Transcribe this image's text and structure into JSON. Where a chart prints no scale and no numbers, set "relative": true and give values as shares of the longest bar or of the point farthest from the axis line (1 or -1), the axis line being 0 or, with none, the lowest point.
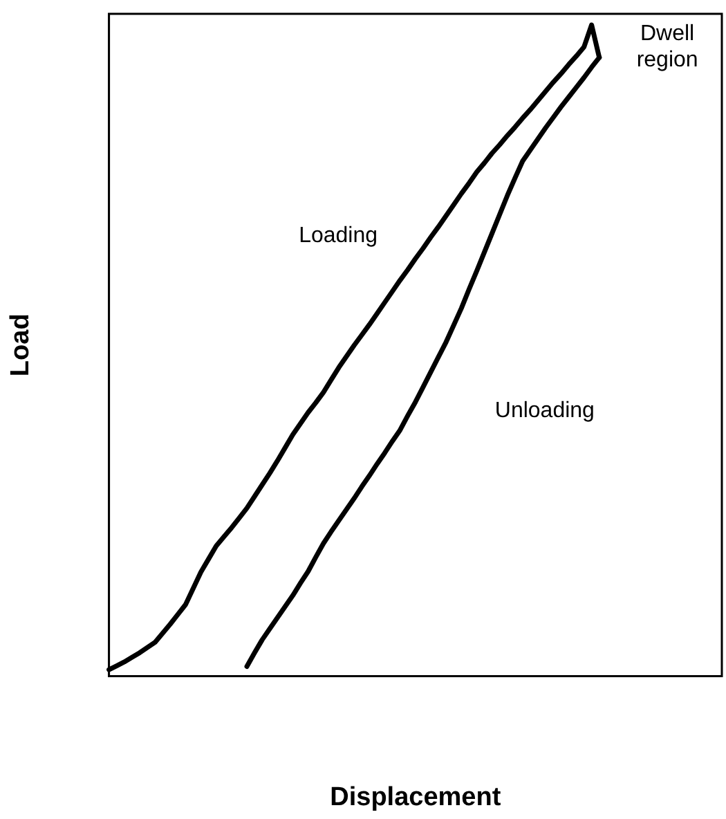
{
  "chart_data": {
    "type": "line",
    "relative": true,
    "xlabel": "Displacement",
    "ylabel": "Load",
    "grid": false,
    "legend": false,
    "marker": "none",
    "line_style": "solid",
    "categories": [
      null,
      null,
      null,
      null,
      null,
      null,
      null,
      null,
      null,
      null,
      null,
      null,
      null,
      null,
      null,
      null,
      null,
      null,
      null,
      null,
      null,
      null,
      null,
      null,
      null,
      null,
      null,
      null,
      null,
      null,
      null,
      null,
      null,
      null,
      null,
      null,
      null,
      null,
      null,
      null,
      null,
      null,
      null,
      null,
      null,
      null,
      null,
      null,
      null,
      null,
      null,
      null,
      null,
      null,
      null,
      null,
      null,
      null,
      null,
      null,
      null,
      null,
      null,
      null,
      null,
      null,
      null,
      null,
      null,
      null,
      null,
      null,
      null,
      null,
      null,
      null,
      null,
      null,
      null,
      null,
      null
    ],
    "series": [
      {
        "color": "#000000",
        "values": [
          0.01,
          0.016,
          0.022,
          0.029,
          0.036,
          0.044,
          0.052,
          0.066,
          0.08,
          0.095,
          0.11,
          0.135,
          0.16,
          0.18,
          0.2,
          0.214,
          0.228,
          0.243,
          0.258,
          0.276,
          0.294,
          0.312,
          0.331,
          0.351,
          0.371,
          0.388,
          0.405,
          0.42,
          0.436,
          0.455,
          0.474,
          0.491,
          0.508,
          0.524,
          0.54,
          0.557,
          0.574,
          0.591,
          0.608,
          0.624,
          0.641,
          0.657,
          0.674,
          0.69,
          0.707,
          0.724,
          0.741,
          0.757,
          0.774,
          0.788,
          0.803,
          0.816,
          0.83,
          0.843,
          0.857,
          0.87,
          0.884,
          0.898,
          0.912,
          0.925,
          0.939,
          0.952,
          0.966,
          1,
          0.95,
          null,
          null,
          null,
          null,
          null,
          null,
          null,
          null,
          null,
          null,
          null,
          null,
          null,
          null,
          null,
          null
        ]
      },
      {
        "color": "#000000",
        "values": [
          null,
          null,
          null,
          null,
          null,
          null,
          null,
          null,
          null,
          null,
          null,
          null,
          null,
          null,
          null,
          null,
          null,
          null,
          0.015,
          0.036,
          0.056,
          0.073,
          0.09,
          0.107,
          0.124,
          0.143,
          0.161,
          0.183,
          0.204,
          0.222,
          0.239,
          0.256,
          0.273,
          0.291,
          0.308,
          0.326,
          0.343,
          0.361,
          0.378,
          0.4,
          0.421,
          0.444,
          0.467,
          0.49,
          0.513,
          0.539,
          0.565,
          0.594,
          0.622,
          0.651,
          0.68,
          0.709,
          0.738,
          0.765,
          0.791,
          0.808,
          0.825,
          0.842,
          0.858,
          0.874,
          0.889,
          0.904,
          0.919,
          0.935,
          0.95,
          null,
          null,
          null,
          null,
          null,
          null,
          null,
          null,
          null,
          null,
          null,
          null,
          null,
          null,
          null,
          null
        ]
      }
    ],
    "annotations": [
      "Loading",
      "Unloading",
      "Dwell\nregion"
    ]
  }
}
